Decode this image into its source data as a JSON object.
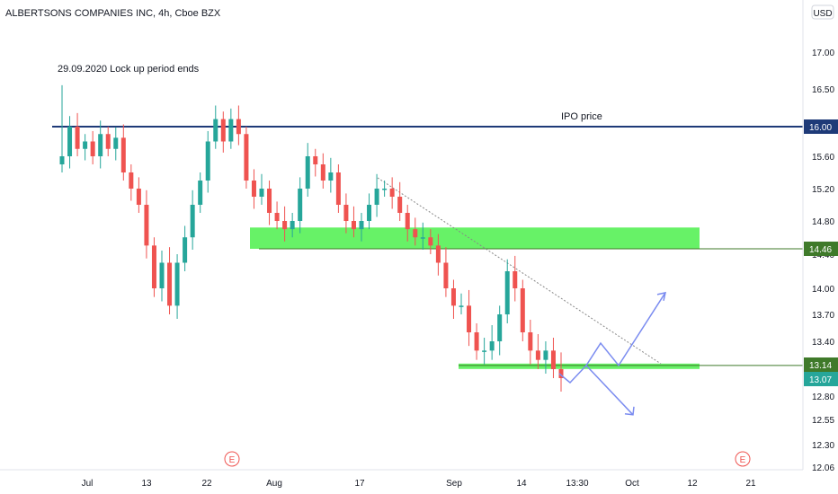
{
  "header": {
    "title": "ALBERTSONS COMPANIES INC, 4h, Cboe BZX",
    "currency": "USD"
  },
  "annotations": {
    "lockup_note": "29.09.2020 Lock up period ends",
    "ipo_label": "IPO price",
    "earnings_marker": "E"
  },
  "price_tags": [
    {
      "value": "16.00",
      "price": 16.0,
      "color": "#1e3a78"
    },
    {
      "value": "14.46",
      "price": 14.46,
      "color": "#3f7a2a"
    },
    {
      "value": "13.14",
      "price": 13.14,
      "color": "#3f7a2a"
    },
    {
      "value": "13.07",
      "price": 13.07,
      "color": "#26a69a"
    }
  ],
  "colors": {
    "up": "#26a69a",
    "down": "#ef5350",
    "zone": "#4cf04c",
    "ipo_line": "#1e3a78",
    "support_line": "#3f7a2a",
    "projection": "#7b8cf0"
  },
  "chart_data": {
    "type": "candlestick",
    "title": "ALBERTSONS COMPANIES INC, 4h, Cboe BZX",
    "ylabel": "USD",
    "ylim": [
      12.06,
      17.5
    ],
    "y_ticks": [
      "17.00",
      "16.50",
      "16.00",
      "15.60",
      "15.20",
      "14.80",
      "14.40",
      "14.00",
      "13.70",
      "13.40",
      "13.10",
      "12.80",
      "12.55",
      "12.30",
      "12.06"
    ],
    "x_ticks": [
      "Jul",
      "13",
      "22",
      "Aug",
      "17",
      "Sep",
      "14",
      "13:30",
      "Oct",
      "12",
      "21"
    ],
    "horizontal_levels": [
      {
        "label": "IPO price",
        "price": 16.0
      },
      {
        "price": 14.46
      },
      {
        "price": 13.14
      }
    ],
    "zones": [
      {
        "top": 14.72,
        "bottom": 14.46
      },
      {
        "top": 13.16,
        "bottom": 13.12
      }
    ],
    "close_path": [
      15.6,
      16.0,
      15.7,
      15.8,
      15.6,
      15.9,
      15.7,
      15.85,
      15.4,
      15.2,
      15.0,
      14.5,
      14.0,
      14.3,
      13.8,
      14.3,
      14.6,
      15.0,
      15.3,
      15.8,
      16.1,
      15.8,
      16.1,
      15.9,
      15.3,
      15.1,
      15.2,
      14.9,
      14.8,
      14.7,
      14.8,
      15.2,
      15.6,
      15.5,
      15.3,
      15.4,
      15.0,
      14.8,
      14.7,
      14.8,
      15.0,
      15.2,
      15.2,
      15.1,
      14.9,
      14.7,
      14.6,
      14.6,
      14.5,
      14.3,
      14.0,
      13.8,
      13.8,
      13.5,
      13.3,
      13.3,
      13.4,
      13.7,
      14.2,
      14.0,
      13.5,
      13.3,
      13.2,
      13.3,
      13.1,
      13.0
    ],
    "projection_path": [
      13.05,
      12.95,
      13.14,
      13.38,
      13.14,
      13.95
    ],
    "projection_alt_path": [
      13.14,
      12.6
    ]
  }
}
